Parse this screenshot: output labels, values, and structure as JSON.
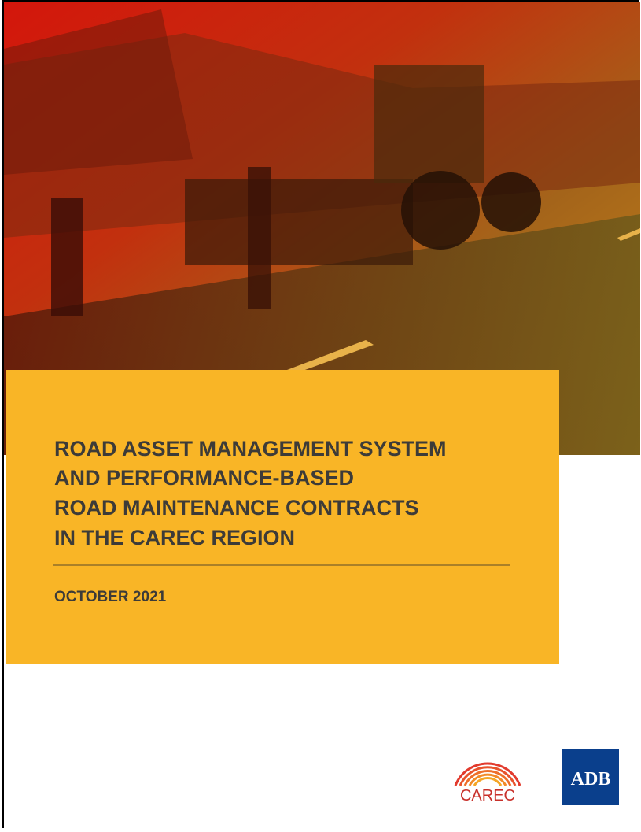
{
  "cover": {
    "title_lines": [
      "ROAD ASSET MANAGEMENT SYSTEM",
      "AND PERFORMANCE-BASED",
      "ROAD MAINTENANCE CONTRACTS",
      "IN THE CAREC REGION"
    ],
    "date": "OCTOBER 2021",
    "logos": {
      "carec": "CAREC",
      "adb": "ADB"
    }
  }
}
